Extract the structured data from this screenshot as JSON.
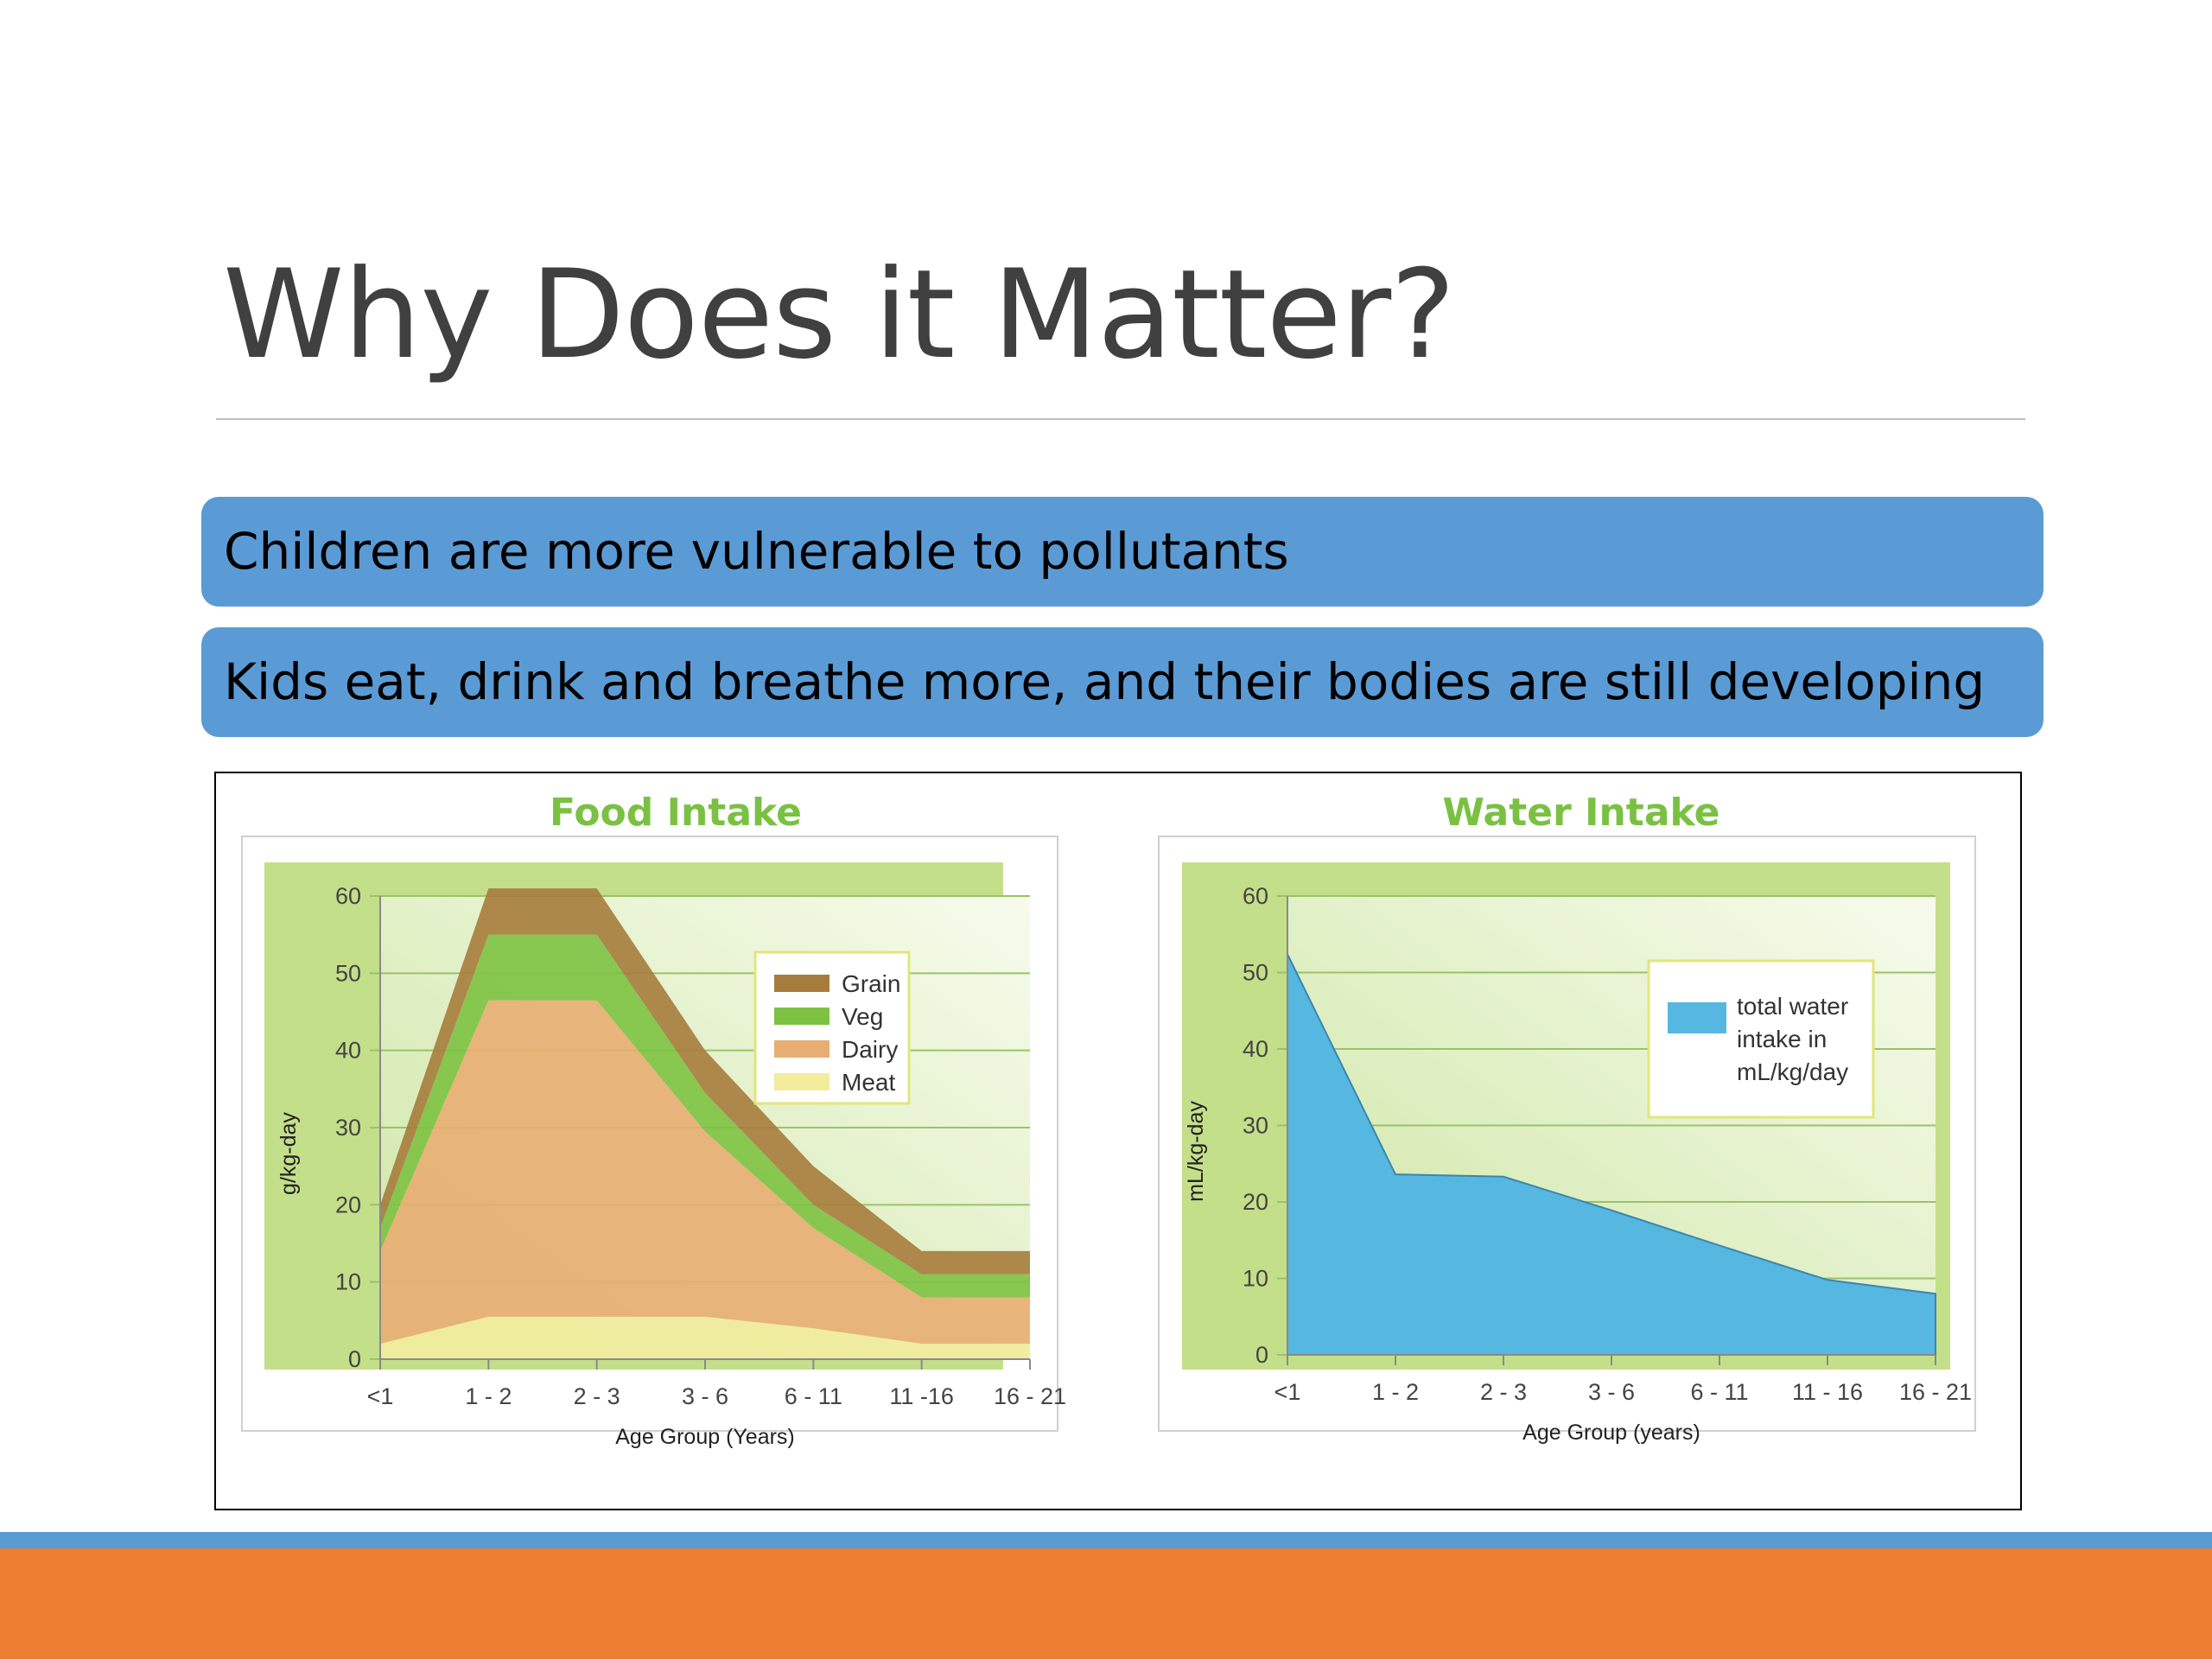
{
  "slide": {
    "title": "Why Does it Matter?",
    "bullets": [
      "Children are more vulnerable to pollutants",
      "Kids eat, drink and breathe more, and their bodies are still developing"
    ]
  },
  "colors": {
    "bullet_bar": "#5b9bd5",
    "footer_blue": "#5b9bd5",
    "footer_orange": "#ed7d31",
    "chart_title": "#7ac143"
  },
  "chart_data": [
    {
      "type": "area",
      "stacked": true,
      "title": "Food Intake",
      "xlabel": "Age Group (Years)",
      "ylabel": "g/kg-day",
      "categories": [
        "<1",
        "1 - 2",
        "2 - 3",
        "3 - 6",
        "6 - 11",
        "11 -16",
        "16 - 21"
      ],
      "yticks": [
        0,
        10,
        20,
        30,
        40,
        50,
        60
      ],
      "ylim": [
        0,
        60
      ],
      "grid": true,
      "legend_position": "top-right",
      "series": [
        {
          "name": "Meat",
          "color": "#f2ec9c",
          "values": [
            2,
            5.5,
            5.5,
            5.5,
            4,
            2,
            2
          ]
        },
        {
          "name": "Dairy",
          "color": "#e8ae72",
          "values": [
            12,
            41,
            41,
            24,
            13,
            6,
            6
          ]
        },
        {
          "name": "Veg",
          "color": "#7dc242",
          "values": [
            3,
            8.5,
            8.5,
            5,
            3,
            3,
            3
          ]
        },
        {
          "name": "Grain",
          "color": "#a67c3c",
          "values": [
            3,
            6,
            6,
            5.5,
            5,
            3,
            3
          ]
        }
      ]
    },
    {
      "type": "area",
      "title": "Water Intake",
      "xlabel": "Age Group (years)",
      "ylabel": "mL/kg-day",
      "categories": [
        "<1",
        "1 - 2",
        "2 - 3",
        "3 - 6",
        "6 - 11",
        "11 - 16",
        "16 - 21"
      ],
      "yticks": [
        0,
        10,
        20,
        30,
        40,
        50,
        60
      ],
      "ylim": [
        0,
        60
      ],
      "grid": true,
      "legend_position": "top-right",
      "series": [
        {
          "name": "total water intake in mL/kg/day",
          "name_lines": [
            "total water",
            "intake in",
            "mL/kg/day"
          ],
          "color": "#56b7e0",
          "values": [
            52.4,
            23.6,
            23.3,
            18.9,
            14.3,
            9.8,
            8
          ]
        }
      ]
    }
  ]
}
